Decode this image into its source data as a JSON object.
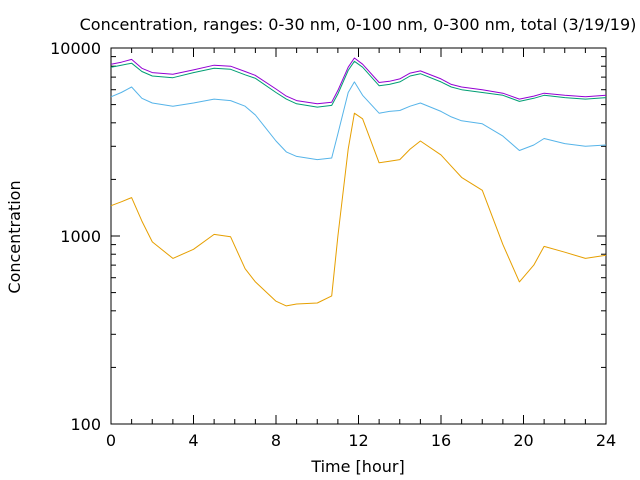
{
  "chart_data": {
    "type": "line",
    "title": "Concentration, ranges: 0-30 nm, 0-100 nm, 0-300 nm, total (3/19/19)",
    "xlabel": "Time [hour]",
    "ylabel": "Concentration",
    "xlim": [
      0,
      24
    ],
    "ylim": [
      100,
      10000
    ],
    "yscale": "log",
    "grid": false,
    "legend": "none",
    "xticks": [
      "0",
      "4",
      "8",
      "12",
      "16",
      "20",
      "24"
    ],
    "yticks": [
      "100",
      "1000",
      "10000"
    ],
    "x": [
      0,
      0.5,
      1,
      1.5,
      2,
      3,
      4,
      5,
      5.8,
      6.5,
      7,
      8,
      8.5,
      9,
      10,
      10.7,
      11,
      11.5,
      11.8,
      12.2,
      13,
      13.5,
      14,
      14.5,
      15,
      16,
      16.5,
      17,
      18,
      19,
      19.8,
      20.5,
      21,
      22,
      23,
      24
    ],
    "series": [
      {
        "color": "#e69f00",
        "values": [
          1450,
          1520,
          1600,
          1200,
          930,
          760,
          850,
          1020,
          990,
          670,
          570,
          450,
          425,
          435,
          440,
          480,
          1000,
          2900,
          4500,
          4200,
          2450,
          2500,
          2550,
          2900,
          3200,
          2700,
          2350,
          2050,
          1750,
          900,
          570,
          700,
          880,
          820,
          760,
          790
        ]
      },
      {
        "color": "#56b4e9",
        "values": [
          5500,
          5800,
          6200,
          5400,
          5100,
          4900,
          5100,
          5350,
          5250,
          4900,
          4400,
          3200,
          2800,
          2650,
          2550,
          2600,
          3500,
          5800,
          6600,
          5600,
          4500,
          4600,
          4650,
          4900,
          5100,
          4600,
          4300,
          4100,
          3950,
          3400,
          2850,
          3050,
          3300,
          3100,
          3000,
          3050
        ]
      },
      {
        "color": "#009e73",
        "values": [
          7900,
          8100,
          8300,
          7500,
          7100,
          6950,
          7400,
          7800,
          7700,
          7200,
          6900,
          5800,
          5350,
          5050,
          4850,
          4950,
          5700,
          7600,
          8500,
          7900,
          6300,
          6400,
          6600,
          7100,
          7300,
          6600,
          6200,
          6000,
          5800,
          5600,
          5200,
          5400,
          5600,
          5450,
          5350,
          5450
        ]
      },
      {
        "color": "#9400d3",
        "values": [
          8200,
          8400,
          8700,
          7800,
          7400,
          7250,
          7650,
          8100,
          8000,
          7500,
          7150,
          6050,
          5550,
          5250,
          5050,
          5150,
          5950,
          7900,
          8850,
          8200,
          6550,
          6650,
          6850,
          7350,
          7550,
          6850,
          6400,
          6200,
          6000,
          5750,
          5350,
          5550,
          5750,
          5600,
          5500,
          5600
        ]
      }
    ]
  }
}
